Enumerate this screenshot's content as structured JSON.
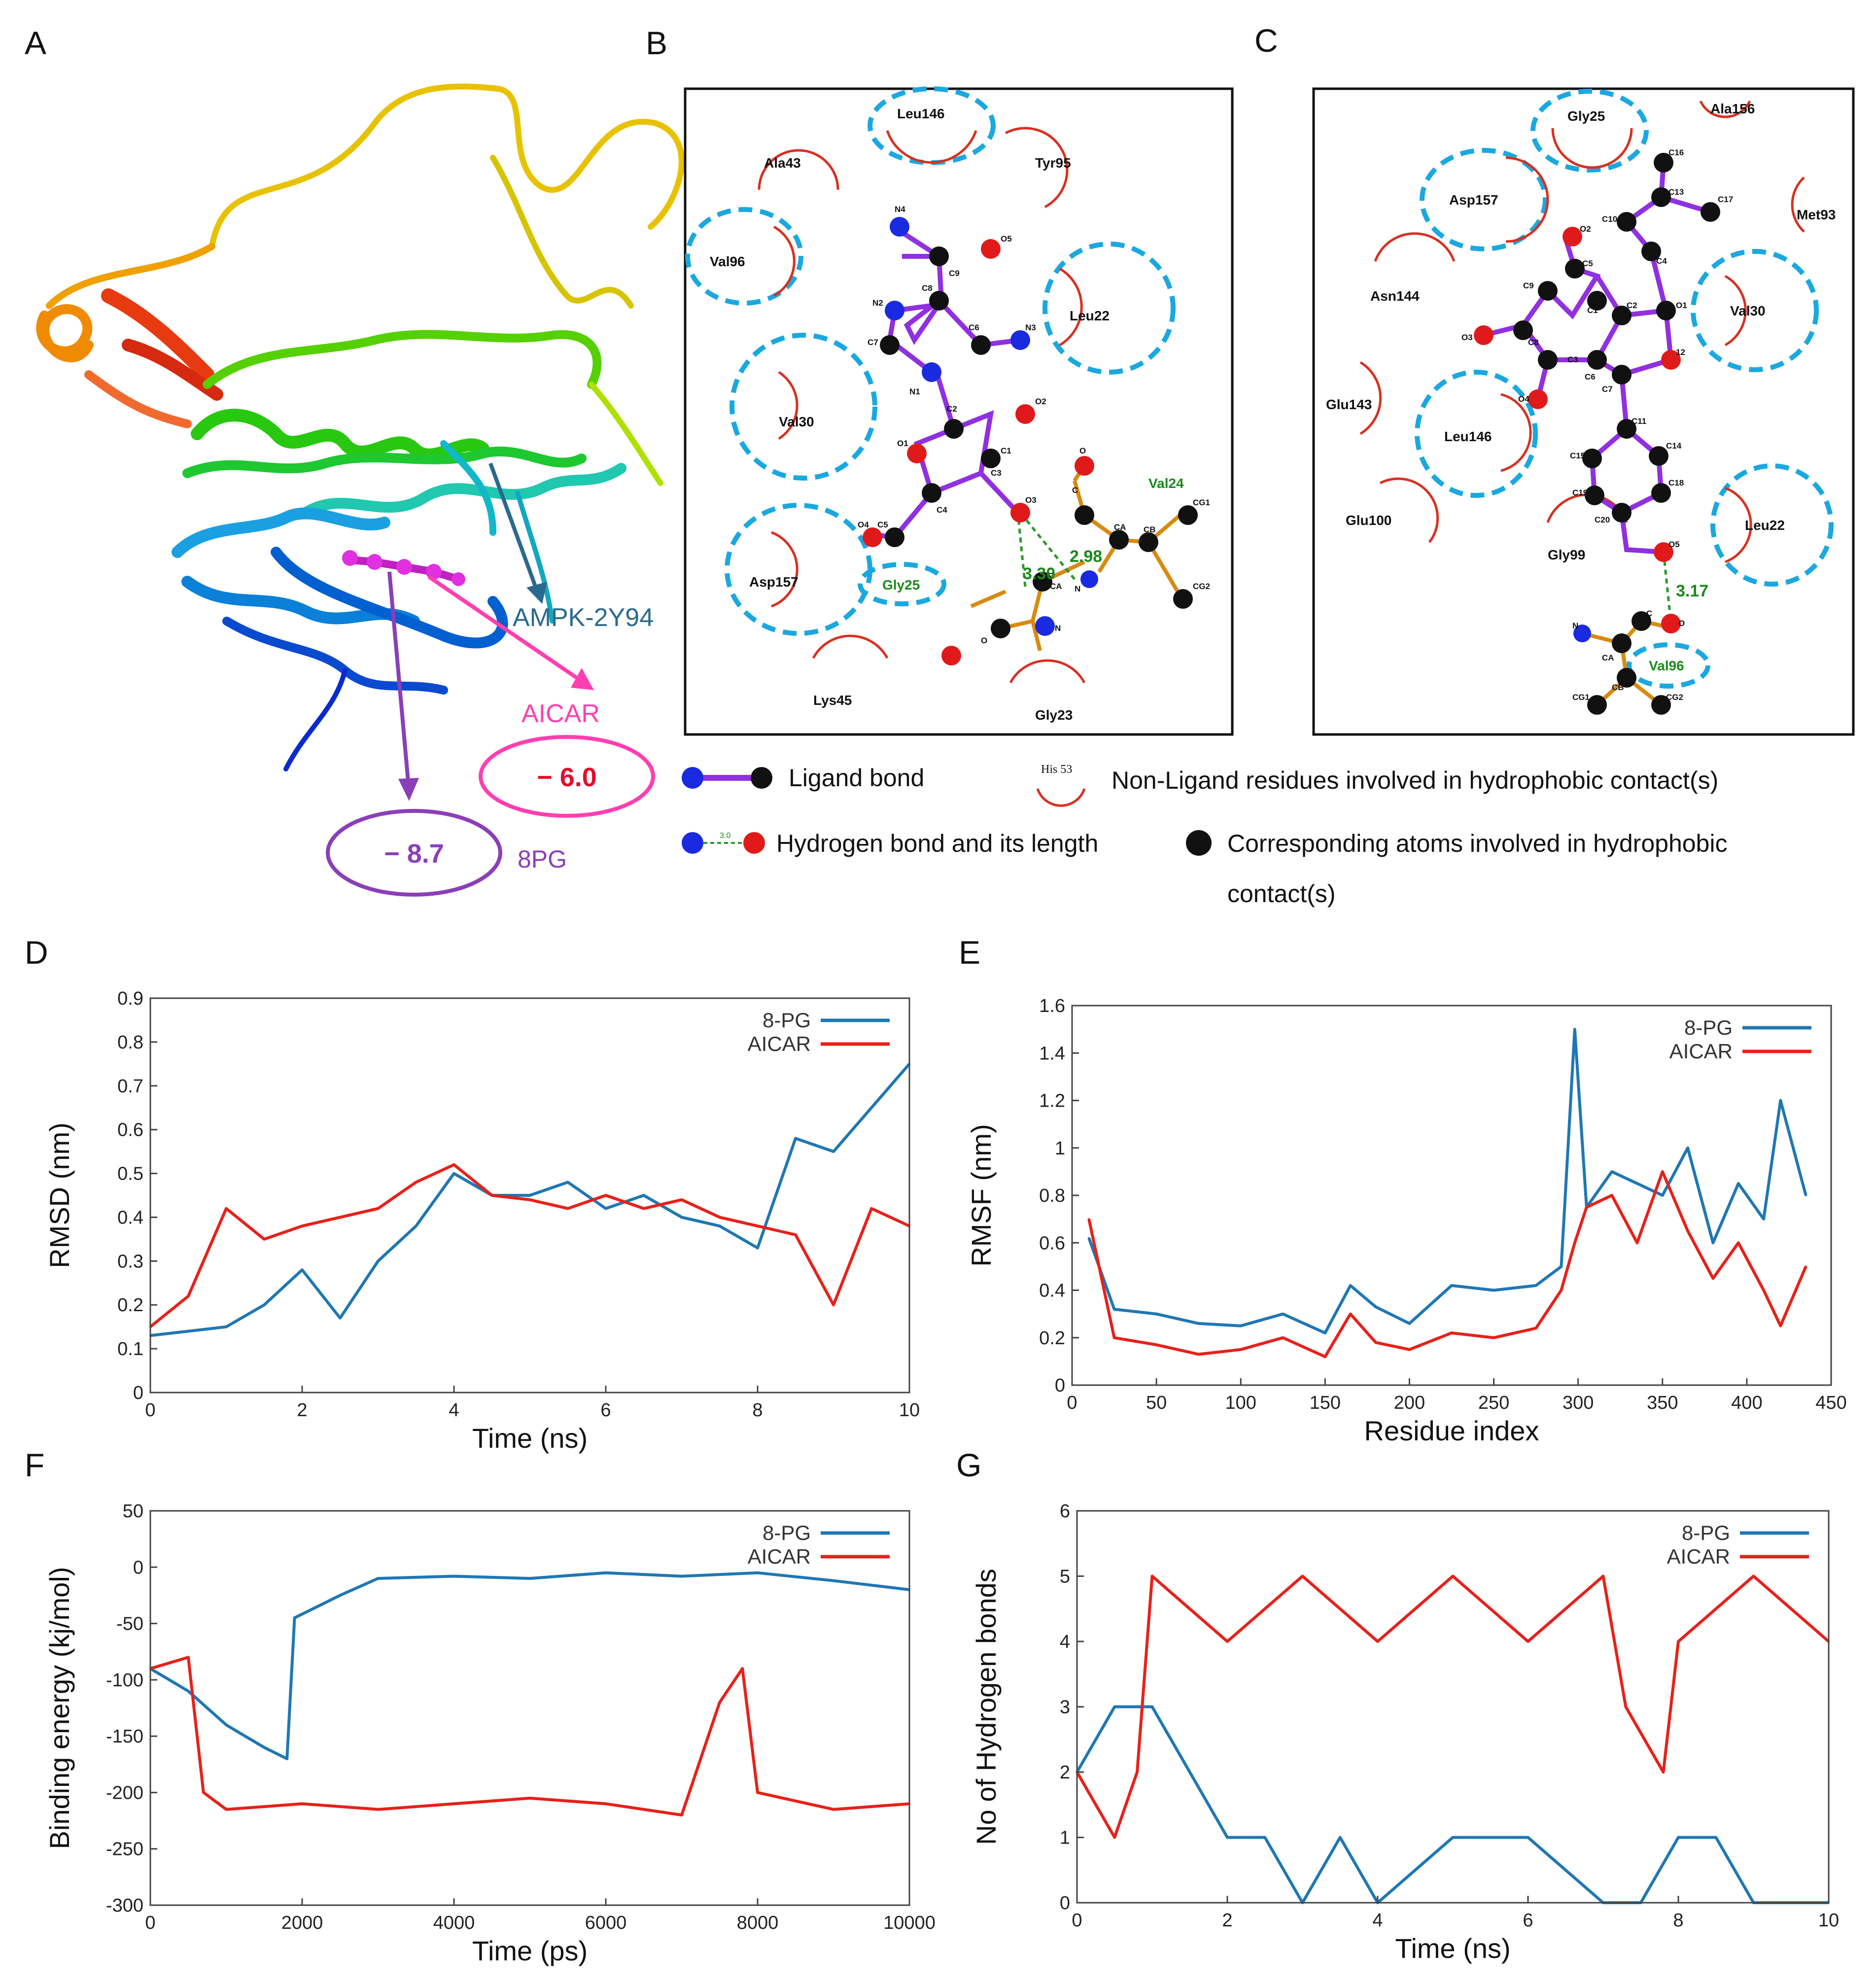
{
  "panels": {
    "A": "A",
    "B": "B",
    "C": "C",
    "D": "D",
    "E": "E",
    "F": "F",
    "G": "G"
  },
  "panel_a": {
    "protein": "AMPK-2Y94",
    "ligand1": "AICAR",
    "score1": "− 6.0",
    "ligand2": "8PG",
    "score2": "− 8.7",
    "colors": {
      "protein": "#2a6a8c",
      "aicar": "#ff3fb0",
      "pg": "#8a3fb8",
      "score1": "#e0102a"
    }
  },
  "panel_b": {
    "residues": {
      "leu146": "Leu146",
      "ala43": "Ala43",
      "tyr95": "Tyr95",
      "val96": "Val96",
      "leu22": "Leu22",
      "val30": "Val30",
      "asp157": "Asp157",
      "gly25": "Gly25",
      "lys45": "Lys45",
      "gly23": "Gly23",
      "val24": "Val24"
    },
    "atoms": {
      "n4": "N4",
      "o5": "O5",
      "c9": "C9",
      "c8": "C8",
      "n2": "N2",
      "c6": "C6",
      "n3": "N3",
      "c7": "C7",
      "n1": "N1",
      "c2": "C2",
      "o2": "O2",
      "o1": "O1",
      "c1": "C1",
      "c3": "C3",
      "c4": "C4",
      "o3": "O3",
      "o4": "O4",
      "c5": "C5",
      "c": "C",
      "o": "O",
      "ca": "CA",
      "cb": "CB",
      "cg1": "CG1",
      "cg2": "CG2",
      "n": "N",
      "cx": "C",
      "cax": "CA",
      "ox": "O",
      "nx": "N"
    },
    "hbonds": {
      "h1": "2.98",
      "h2": "3.30"
    }
  },
  "panel_c": {
    "residues": {
      "gly25": "Gly25",
      "ala156": "Ala156",
      "asp157": "Asp157",
      "met93": "Met93",
      "asn144": "Asn144",
      "val30": "Val30",
      "glu143": "Glu143",
      "leu146": "Leu146",
      "glu100": "Glu100",
      "leu22": "Leu22",
      "gly99": "Gly99",
      "val96": "Val96"
    },
    "atoms": {
      "c16": "C16",
      "c13": "C13",
      "c17": "C17",
      "c10": "C10",
      "c4": "C4",
      "o2": "O2",
      "c5": "C5",
      "c9": "C9",
      "c1": "C1",
      "c2": "C2",
      "o1": "O1",
      "o3": "O3",
      "c8": "C8",
      "c3": "C3",
      "c12": "12",
      "o4": "O4",
      "c6": "C6",
      "c7": "C7",
      "c11": "C11",
      "c15": "C15",
      "c14": "C14",
      "c19": "C19",
      "c18": "C18",
      "c20": "C20",
      "o5": "O5",
      "n": "N",
      "c": "C",
      "o": "O",
      "ca": "CA",
      "cb": "CB",
      "cg1": "CG1",
      "cg2": "CG2"
    },
    "hbonds": {
      "h1": "3.17"
    }
  },
  "key": {
    "ligand_bond": "Ligand bond",
    "his": "His 53",
    "nonligand": "Non-Ligand residues involved  in hydrophobic contact(s)",
    "hbond_len": "3.0",
    "hbond": "Hydrogen bond and its length",
    "corr1": "Corresponding atoms involved in hydrophobic",
    "corr2": "contact(s)"
  },
  "chart_data": [
    {
      "panel": "D",
      "type": "line",
      "xlabel": "Time (ns)",
      "ylabel": "RMSD (nm)",
      "xlim": [
        0,
        10
      ],
      "ylim": [
        0,
        0.9
      ],
      "xticks": [
        0,
        2,
        4,
        6,
        8,
        10
      ],
      "yticks": [
        0,
        0.1,
        0.2,
        0.3,
        0.4,
        0.5,
        0.6,
        0.7,
        0.8,
        0.9
      ],
      "xtick_labels": [
        "0",
        "2",
        "4",
        "6",
        "8",
        "10"
      ],
      "ytick_labels": [
        "0",
        "0.1",
        "0.2",
        "0.3",
        "0.4",
        "0.5",
        "0.6",
        "0.7",
        "0.8",
        "0.9"
      ],
      "legend": "top-right",
      "series": [
        {
          "name": "8-PG",
          "color": "#1f77b4",
          "x": [
            0,
            0.5,
            1,
            1.5,
            2,
            2.5,
            3,
            3.5,
            4,
            4.5,
            5,
            5.5,
            6,
            6.5,
            7,
            7.5,
            8,
            8.5,
            9,
            9.5,
            10
          ],
          "y": [
            0.13,
            0.14,
            0.15,
            0.2,
            0.28,
            0.17,
            0.3,
            0.38,
            0.5,
            0.45,
            0.45,
            0.48,
            0.42,
            0.45,
            0.4,
            0.38,
            0.33,
            0.58,
            0.55,
            0.65,
            0.75
          ]
        },
        {
          "name": "AICAR",
          "color": "#e8201a",
          "x": [
            0,
            0.5,
            1,
            1.5,
            2,
            2.5,
            3,
            3.5,
            4,
            4.5,
            5,
            5.5,
            6,
            6.5,
            7,
            7.5,
            8,
            8.5,
            9,
            9.5,
            10
          ],
          "y": [
            0.15,
            0.22,
            0.42,
            0.35,
            0.38,
            0.4,
            0.42,
            0.48,
            0.52,
            0.45,
            0.44,
            0.42,
            0.45,
            0.42,
            0.44,
            0.4,
            0.38,
            0.36,
            0.2,
            0.42,
            0.38
          ]
        }
      ]
    },
    {
      "panel": "E",
      "type": "line",
      "xlabel": "Residue index",
      "ylabel": "RMSF (nm)",
      "xlim": [
        0,
        450
      ],
      "ylim": [
        0,
        1.6
      ],
      "xticks": [
        0,
        50,
        100,
        150,
        200,
        250,
        300,
        350,
        400,
        450
      ],
      "yticks": [
        0,
        0.2,
        0.4,
        0.6,
        0.8,
        1,
        1.2,
        1.4,
        1.6
      ],
      "xtick_labels": [
        "0",
        "50",
        "100",
        "150",
        "200",
        "250",
        "300",
        "350",
        "400",
        "450"
      ],
      "ytick_labels": [
        "0",
        "0.2",
        "0.4",
        "0.6",
        "0.8",
        "1",
        "1.2",
        "1.4",
        "1.6"
      ],
      "legend": "top-right",
      "series": [
        {
          "name": "8-PG",
          "color": "#1f77b4",
          "x": [
            10,
            25,
            50,
            75,
            100,
            125,
            150,
            165,
            180,
            200,
            225,
            250,
            275,
            290,
            298,
            305,
            320,
            335,
            350,
            365,
            380,
            395,
            410,
            420,
            435
          ],
          "y": [
            0.62,
            0.32,
            0.3,
            0.26,
            0.25,
            0.3,
            0.22,
            0.42,
            0.33,
            0.26,
            0.42,
            0.4,
            0.42,
            0.5,
            1.5,
            0.75,
            0.9,
            0.85,
            0.8,
            1.0,
            0.6,
            0.85,
            0.7,
            1.2,
            0.8
          ]
        },
        {
          "name": "AICAR",
          "color": "#e8201a",
          "x": [
            10,
            25,
            50,
            75,
            100,
            125,
            150,
            165,
            180,
            200,
            225,
            250,
            275,
            290,
            298,
            305,
            320,
            335,
            350,
            365,
            380,
            395,
            410,
            420,
            435
          ],
          "y": [
            0.7,
            0.2,
            0.17,
            0.13,
            0.15,
            0.2,
            0.12,
            0.3,
            0.18,
            0.15,
            0.22,
            0.2,
            0.24,
            0.4,
            0.6,
            0.75,
            0.8,
            0.6,
            0.9,
            0.65,
            0.45,
            0.6,
            0.4,
            0.25,
            0.5
          ]
        }
      ]
    },
    {
      "panel": "F",
      "type": "line",
      "xlabel": "Time (ps)",
      "ylabel": "Binding energy (kj/mol)",
      "xlim": [
        0,
        10000
      ],
      "ylim": [
        -300,
        50
      ],
      "xticks": [
        0,
        2000,
        4000,
        6000,
        8000,
        10000
      ],
      "yticks": [
        -300,
        -250,
        -200,
        -150,
        -100,
        -50,
        0,
        50
      ],
      "xtick_labels": [
        "0",
        "2000",
        "4000",
        "6000",
        "8000",
        "10000"
      ],
      "ytick_labels": [
        "-300",
        "-250",
        "-200",
        "-150",
        "-100",
        "-50",
        "0",
        "50"
      ],
      "legend": "top-right",
      "series": [
        {
          "name": "8-PG",
          "color": "#1f77b4",
          "x": [
            0,
            500,
            1000,
            1500,
            1800,
            1900,
            2500,
            3000,
            4000,
            5000,
            6000,
            7000,
            8000,
            9000,
            10000
          ],
          "y": [
            -90,
            -110,
            -140,
            -160,
            -170,
            -45,
            -25,
            -10,
            -8,
            -10,
            -5,
            -8,
            -5,
            -12,
            -20
          ]
        },
        {
          "name": "AICAR",
          "color": "#e8201a",
          "x": [
            0,
            500,
            700,
            1000,
            2000,
            3000,
            4000,
            5000,
            6000,
            7000,
            7500,
            7800,
            8000,
            9000,
            10000
          ],
          "y": [
            -90,
            -80,
            -200,
            -215,
            -210,
            -215,
            -210,
            -205,
            -210,
            -220,
            -120,
            -90,
            -200,
            -215,
            -210
          ]
        }
      ]
    },
    {
      "panel": "G",
      "type": "line",
      "xlabel": "Time (ns)",
      "ylabel": "No of Hydrogen bonds",
      "xlim": [
        0,
        10
      ],
      "ylim": [
        0,
        6
      ],
      "xticks": [
        0,
        2,
        4,
        6,
        8,
        10
      ],
      "yticks": [
        0,
        1,
        2,
        3,
        4,
        5,
        6
      ],
      "xtick_labels": [
        "0",
        "2",
        "4",
        "6",
        "8",
        "10"
      ],
      "ytick_labels": [
        "0",
        "1",
        "2",
        "3",
        "4",
        "5",
        "6"
      ],
      "legend": "top-right",
      "series": [
        {
          "name": "8-PG",
          "color": "#1f77b4",
          "x": [
            0,
            0.5,
            1,
            1.5,
            2,
            2.5,
            3,
            3.5,
            4,
            5,
            6,
            7,
            7.5,
            8,
            8.5,
            9,
            10
          ],
          "y": [
            2,
            3,
            3,
            2,
            1,
            1,
            0,
            1,
            0,
            1,
            1,
            0,
            0,
            1,
            1,
            0,
            0
          ]
        },
        {
          "name": "AICAR",
          "color": "#e8201a",
          "x": [
            0,
            0.5,
            0.8,
            1,
            2,
            3,
            4,
            5,
            6,
            7,
            7.3,
            7.8,
            8,
            9,
            10
          ],
          "y": [
            2,
            1,
            2,
            5,
            4,
            5,
            4,
            5,
            4,
            5,
            3,
            2,
            4,
            5,
            4
          ]
        }
      ]
    }
  ]
}
